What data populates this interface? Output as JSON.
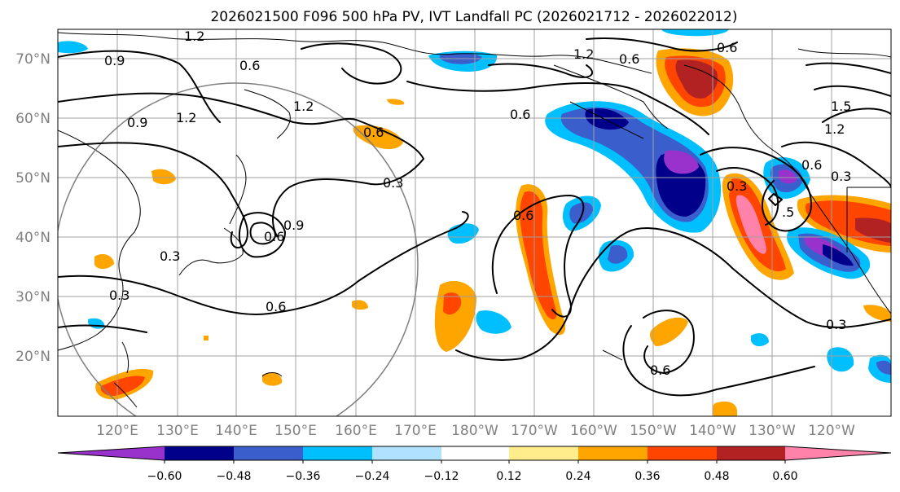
{
  "title": "2026021500 F096 500 hPa PV, IVT Landfall PC (2026021712 - 2026022012)",
  "lat_labels": [
    "70°N",
    "60°N",
    "50°N",
    "40°N",
    "30°N",
    "20°N"
  ],
  "lon_labels": [
    "120°E",
    "130°E",
    "140°E",
    "150°E",
    "160°E",
    "170°E",
    "180°W",
    "170°W",
    "160°W",
    "150°W",
    "140°W",
    "130°W",
    "120°W"
  ],
  "colorbar": {
    "colors": [
      "#9932cc",
      "#00008b",
      "#3a5fcd",
      "#00bfff",
      "#b0e2ff",
      "#ffffff",
      "#ffec8b",
      "#ffa500",
      "#ff4500",
      "#b22222",
      "#ff82ab"
    ],
    "ticks": [
      "−0.60",
      "−0.48",
      "−0.36",
      "−0.24",
      "−0.12",
      "0.12",
      "0.24",
      "0.36",
      "0.48",
      "0.60"
    ]
  },
  "contour_labels": [
    "0.6",
    "0.6",
    "0.6",
    "0.9",
    "0.9",
    "1.2",
    "1.2",
    "1.2",
    "0.3",
    "0.3",
    "0.3",
    "0.3",
    "0.6",
    "0.6",
    "0.6",
    "0.9",
    "0.6",
    "0.6",
    "0.3",
    "1.5",
    "1.2",
    "0.6",
    "0.3",
    "0.6",
    ".5",
    "1.2"
  ]
}
